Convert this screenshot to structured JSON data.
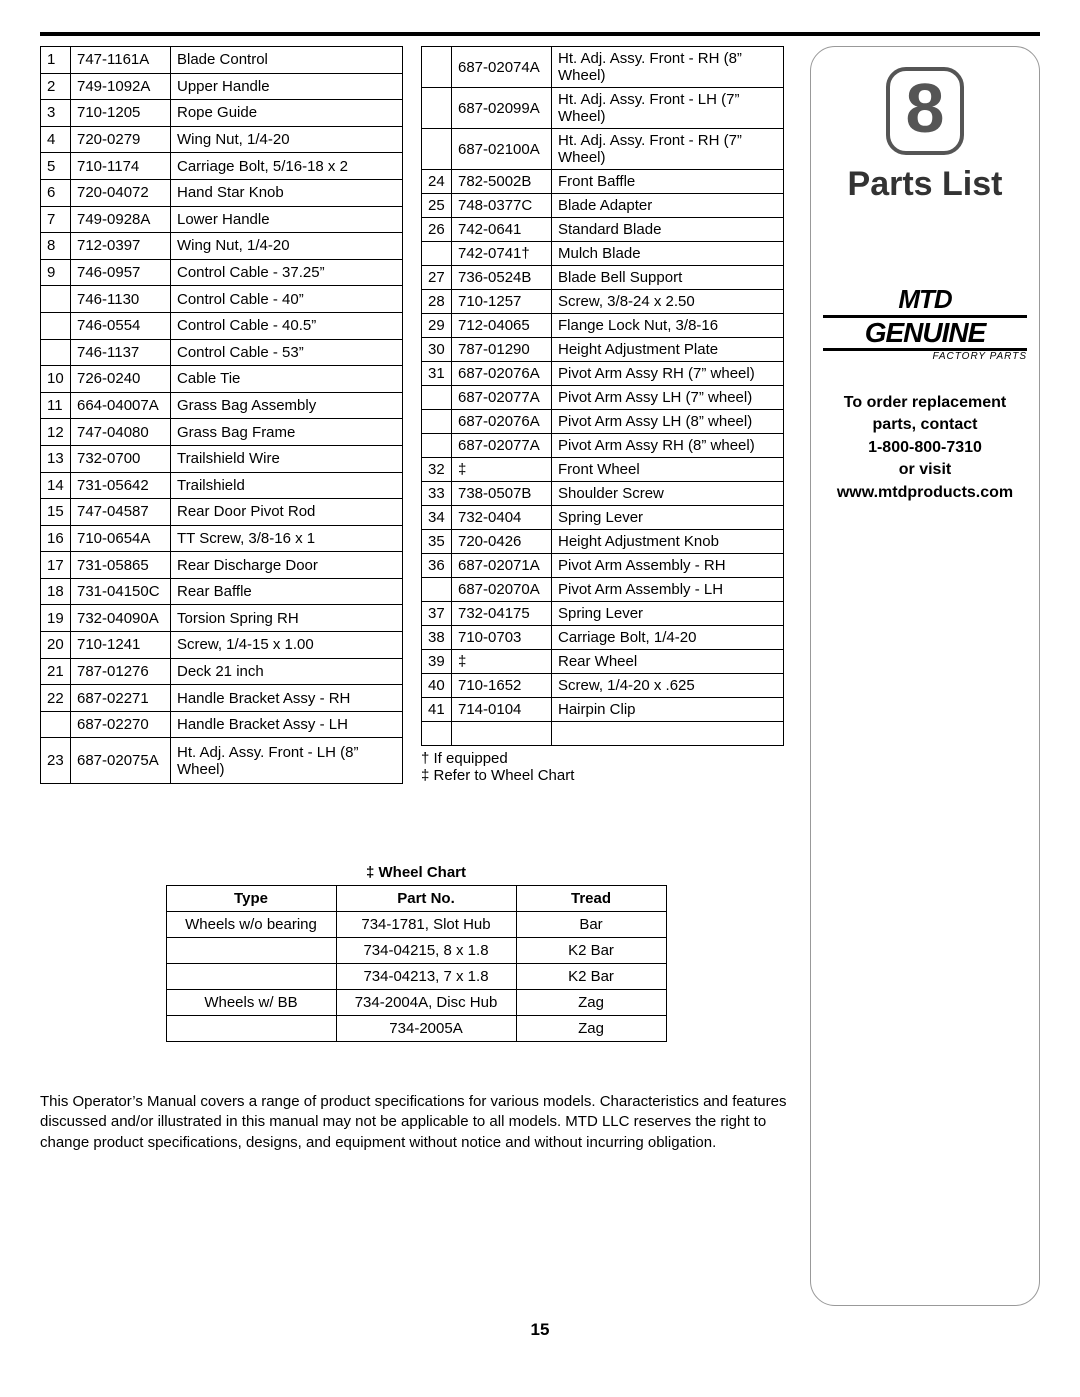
{
  "sectionNumber": "8",
  "sectionTitle": "Parts List",
  "logo": {
    "brand": "MTD",
    "word": "GENUINE",
    "sub": "FACTORY PARTS"
  },
  "orderInfo": {
    "line1": "To order replacement",
    "line2": "parts, contact",
    "phone": "1-800-800-7310",
    "line3": "or visit",
    "url": "www.mtdproducts.com"
  },
  "partsLeft": [
    {
      "ref": "1",
      "part": "747-1161A",
      "desc": "Blade Control"
    },
    {
      "ref": "2",
      "part": "749-1092A",
      "desc": "Upper Handle"
    },
    {
      "ref": "3",
      "part": "710-1205",
      "desc": "Rope Guide"
    },
    {
      "ref": "4",
      "part": "720-0279",
      "desc": "Wing Nut, 1/4-20"
    },
    {
      "ref": "5",
      "part": "710-1174",
      "desc": "Carriage Bolt, 5/16-18 x 2"
    },
    {
      "ref": "6",
      "part": "720-04072",
      "desc": "Hand Star Knob"
    },
    {
      "ref": "7",
      "part": "749-0928A",
      "desc": "Lower Handle"
    },
    {
      "ref": "8",
      "part": "712-0397",
      "desc": "Wing Nut, 1/4-20"
    },
    {
      "ref": "9",
      "part": "746-0957",
      "desc": "Control Cable - 37.25”"
    },
    {
      "ref": "",
      "part": "746-1130",
      "desc": "Control Cable - 40”"
    },
    {
      "ref": "",
      "part": "746-0554",
      "desc": "Control Cable - 40.5”"
    },
    {
      "ref": "",
      "part": "746-1137",
      "desc": "Control Cable - 53”"
    },
    {
      "ref": "10",
      "part": "726-0240",
      "desc": "Cable Tie"
    },
    {
      "ref": "11",
      "part": "664-04007A",
      "desc": "Grass Bag Assembly"
    },
    {
      "ref": "12",
      "part": "747-04080",
      "desc": "Grass Bag Frame"
    },
    {
      "ref": "13",
      "part": "732-0700",
      "desc": "Trailshield Wire"
    },
    {
      "ref": "14",
      "part": "731-05642",
      "desc": "Trailshield"
    },
    {
      "ref": "15",
      "part": "747-04587",
      "desc": "Rear Door Pivot Rod"
    },
    {
      "ref": "16",
      "part": "710-0654A",
      "desc": "TT Screw, 3/8-16 x 1"
    },
    {
      "ref": "17",
      "part": "731-05865",
      "desc": "Rear Discharge Door"
    },
    {
      "ref": "18",
      "part": "731-04150C",
      "desc": "Rear Baffle"
    },
    {
      "ref": "19",
      "part": "732-04090A",
      "desc": "Torsion Spring RH"
    },
    {
      "ref": "20",
      "part": "710-1241",
      "desc": "Screw, 1/4-15 x 1.00"
    },
    {
      "ref": "21",
      "part": "787-01276",
      "desc": "Deck 21 inch"
    },
    {
      "ref": "22",
      "part": "687-02271",
      "desc": "Handle Bracket Assy - RH"
    },
    {
      "ref": "",
      "part": "687-02270",
      "desc": "Handle Bracket Assy - LH"
    },
    {
      "ref": "23",
      "part": "687-02075A",
      "desc": "Ht. Adj. Assy. Front - LH (8” Wheel)"
    }
  ],
  "partsRight": [
    {
      "ref": "",
      "part": "687-02074A",
      "desc": "Ht. Adj. Assy. Front - RH (8” Wheel)"
    },
    {
      "ref": "",
      "part": "687-02099A",
      "desc": "Ht. Adj. Assy. Front - LH (7” Wheel)"
    },
    {
      "ref": "",
      "part": "687-02100A",
      "desc": "Ht. Adj. Assy. Front - RH (7” Wheel)"
    },
    {
      "ref": "24",
      "part": "782-5002B",
      "desc": "Front Baffle"
    },
    {
      "ref": "25",
      "part": "748-0377C",
      "desc": "Blade Adapter"
    },
    {
      "ref": "26",
      "part": "742-0641",
      "desc": "Standard Blade"
    },
    {
      "ref": "",
      "part": "742-0741†",
      "desc": "Mulch Blade"
    },
    {
      "ref": "27",
      "part": "736-0524B",
      "desc": "Blade Bell Support"
    },
    {
      "ref": "28",
      "part": "710-1257",
      "desc": "Screw, 3/8-24 x 2.50"
    },
    {
      "ref": "29",
      "part": "712-04065",
      "desc": "Flange Lock Nut, 3/8-16"
    },
    {
      "ref": "30",
      "part": "787-01290",
      "desc": "Height Adjustment Plate"
    },
    {
      "ref": "31",
      "part": "687-02076A",
      "desc": "Pivot Arm Assy RH (7” wheel)"
    },
    {
      "ref": "",
      "part": "687-02077A",
      "desc": "Pivot Arm Assy LH (7” wheel)"
    },
    {
      "ref": "",
      "part": "687-02076A",
      "desc": "Pivot Arm Assy LH (8” wheel)"
    },
    {
      "ref": "",
      "part": "687-02077A",
      "desc": "Pivot Arm Assy RH (8” wheel)"
    },
    {
      "ref": "32",
      "part": "‡",
      "desc": "Front Wheel"
    },
    {
      "ref": "33",
      "part": "738-0507B",
      "desc": "Shoulder Screw"
    },
    {
      "ref": "34",
      "part": "732-0404",
      "desc": "Spring Lever"
    },
    {
      "ref": "35",
      "part": "720-0426",
      "desc": "Height Adjustment Knob"
    },
    {
      "ref": "36",
      "part": "687-02071A",
      "desc": "Pivot Arm Assembly - RH"
    },
    {
      "ref": "",
      "part": "687-02070A",
      "desc": "Pivot Arm Assembly - LH"
    },
    {
      "ref": "37",
      "part": "732-04175",
      "desc": "Spring Lever"
    },
    {
      "ref": "38",
      "part": "710-0703",
      "desc": "Carriage Bolt, 1/4-20"
    },
    {
      "ref": "39",
      "part": "‡",
      "desc": "Rear Wheel"
    },
    {
      "ref": "40",
      "part": "710-1652",
      "desc": "Screw, 1/4-20 x .625"
    },
    {
      "ref": "41",
      "part": "714-0104",
      "desc": "Hairpin Clip"
    },
    {
      "ref": "",
      "part": "",
      "desc": ""
    }
  ],
  "footnotes": {
    "line1": "† If equipped",
    "line2": "‡ Refer to Wheel Chart"
  },
  "wheelChart": {
    "title": "‡ Wheel Chart",
    "headers": {
      "type": "Type",
      "part": "Part No.",
      "tread": "Tread"
    },
    "rows": [
      {
        "type": "Wheels w/o bearing",
        "part": "734-1781, Slot Hub",
        "tread": "Bar"
      },
      {
        "type": "",
        "part": "734-04215, 8 x 1.8",
        "tread": "K2 Bar"
      },
      {
        "type": "",
        "part": "734-04213, 7 x 1.8",
        "tread": "K2 Bar"
      },
      {
        "type": "Wheels w/ BB",
        "part": "734-2004A, Disc Hub",
        "tread": "Zag"
      },
      {
        "type": "",
        "part": "734-2005A",
        "tread": "Zag"
      }
    ]
  },
  "disclaimer": "This Operator’s Manual covers a range of product specifications for various models. Characteristics and features discussed and/or illustrated in this manual may not be applicable to all models. MTD LLC reserves the right to change product specifications, designs, and equipment without notice and without incurring obligation.",
  "pageNumber": "15"
}
